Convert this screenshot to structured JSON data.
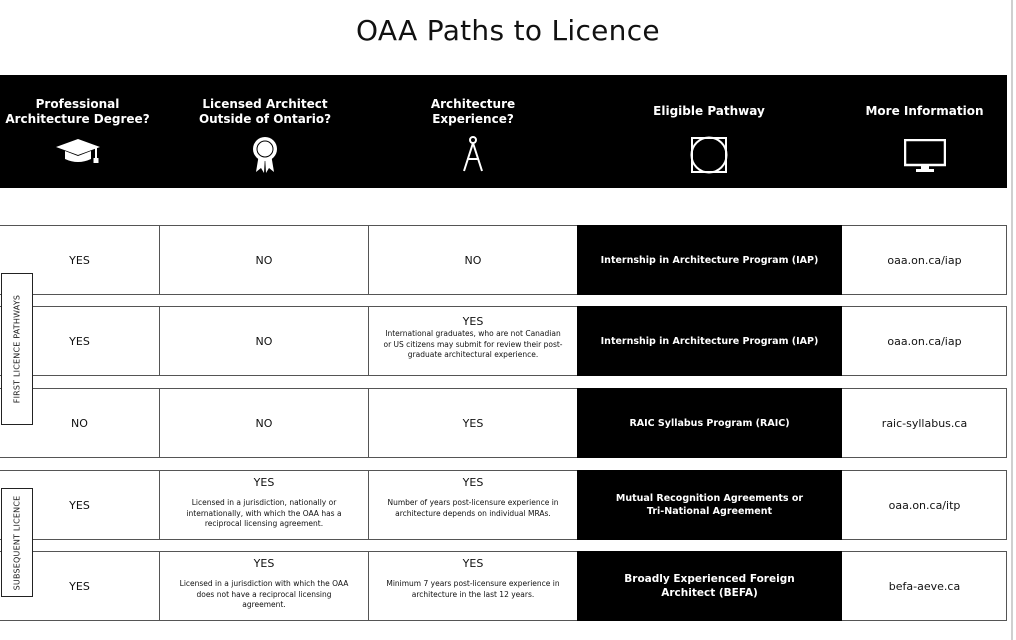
{
  "title": "OAA Paths to Licence",
  "headers": [
    {
      "label": "Professional\nArchitecture Degree?",
      "icon": "graduation-cap-icon"
    },
    {
      "label": "Licensed Architect\nOutside of Ontario?",
      "icon": "award-rosette-icon"
    },
    {
      "label": "Architecture\nExperience?",
      "icon": "drafting-compass-icon"
    },
    {
      "label": "Eligible Pathway",
      "icon": "square-circle-icon"
    },
    {
      "label": "More Information",
      "icon": "computer-monitor-icon"
    }
  ],
  "groups": [
    {
      "label": "FIRST LICENCE PATHWAYS"
    },
    {
      "label": "SUBSEQUENT LICENCE"
    }
  ],
  "rows": [
    {
      "degree": "YES",
      "licensed": "NO",
      "licensed_note": "",
      "experience": "NO",
      "experience_note": "",
      "pathway": "Internship in Architecture Program (IAP)",
      "link": "oaa.on.ca/iap"
    },
    {
      "degree": "YES",
      "licensed": "NO",
      "licensed_note": "",
      "experience": "YES",
      "experience_note": "International graduates, who are not Canadian or US citizens may submit for review their post-graduate architectural experience.",
      "pathway": "Internship in Architecture Program (IAP)",
      "link": "oaa.on.ca/iap"
    },
    {
      "degree": "NO",
      "licensed": "NO",
      "licensed_note": "",
      "experience": "YES",
      "experience_note": "",
      "pathway": "RAIC Syllabus Program (RAIC)",
      "link": "raic-syllabus.ca"
    },
    {
      "degree": "YES",
      "licensed": "YES",
      "licensed_note": "Licensed in a jurisdiction, nationally or internationally, with which the OAA has a reciprocal licensing agreement.",
      "experience": "YES",
      "experience_note": "Number of years post-licensure experience in architecture depends on individual MRAs.",
      "pathway": "Mutual Recognition Agreements or\nTri-National Agreement",
      "link": "oaa.on.ca/itp"
    },
    {
      "degree": "YES",
      "licensed": "YES",
      "licensed_note": "Licensed in a jurisdiction with which the OAA does not have a reciprocal licensing agreement.",
      "experience": "YES",
      "experience_note": "Minimum 7 years post-licensure experience in architecture in the last 12 years.",
      "pathway": "Broadly Experienced Foreign\nArchitect (BEFA)",
      "link": "befa-aeve.ca"
    }
  ]
}
